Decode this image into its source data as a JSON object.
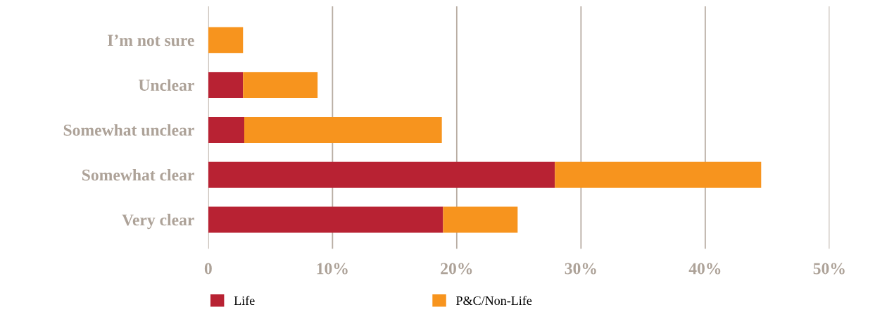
{
  "chart_data": {
    "type": "bar",
    "orientation": "horizontal",
    "stacked": true,
    "categories": [
      "I’m not sure",
      "Unclear",
      "Somewhat unclear",
      "Somewhat clear",
      "Very clear"
    ],
    "series": [
      {
        "name": "Life",
        "color": "#b82233",
        "values": [
          0,
          2.8,
          2.9,
          27.9,
          18.9
        ]
      },
      {
        "name": "P&C/Non-Life",
        "color": "#f7941e",
        "values": [
          2.8,
          6.0,
          15.9,
          16.6,
          6.0
        ]
      }
    ],
    "xlim": [
      0,
      50
    ],
    "xticks": [
      0,
      {
        "value": 10,
        "label": "10%"
      },
      {
        "value": 20,
        "label": "20%"
      },
      {
        "value": 30,
        "label": "30%"
      },
      {
        "value": 40,
        "label": "40%"
      },
      {
        "value": 50,
        "label": "50%"
      }
    ],
    "grid": "x",
    "legend": "bottom left"
  }
}
